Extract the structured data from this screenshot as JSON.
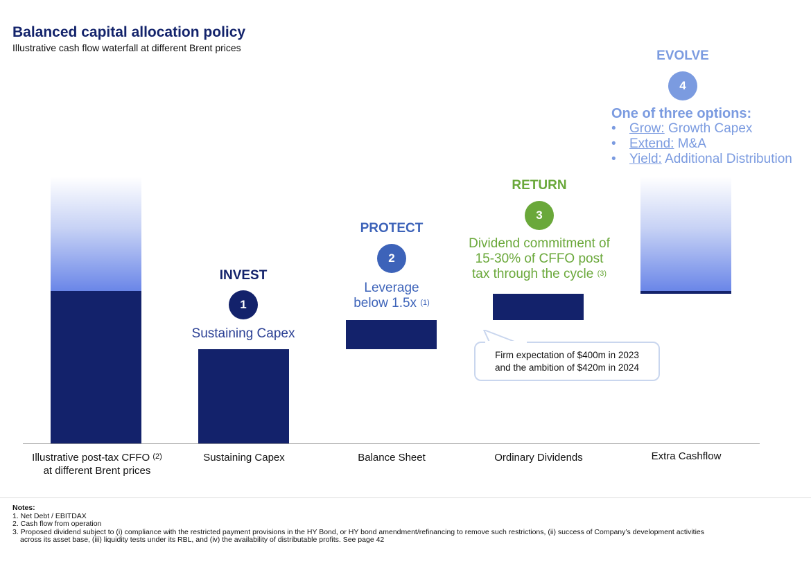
{
  "header": {
    "title": "Balanced capital allocation policy",
    "subtitle": "Illustrative cash flow waterfall at different Brent prices"
  },
  "colors": {
    "navy": "#13226b",
    "blue": "#3d63b9",
    "green": "#6aa83a",
    "light_blue": "#7b9be0"
  },
  "steps": [
    {
      "heading": "INVEST",
      "number": "1",
      "text": "Sustaining Capex"
    },
    {
      "heading": "PROTECT",
      "number": "2",
      "text_line1": "Leverage",
      "text_line2": "below 1.5x",
      "sup": "(1)"
    },
    {
      "heading": "RETURN",
      "number": "3",
      "text_line1": "Dividend commitment of",
      "text_line2": "15-30% of CFFO post",
      "text_line3": "tax through the cycle",
      "sup": "(3)"
    },
    {
      "heading": "EVOLVE",
      "number": "4",
      "options_title": "One of three options:",
      "options": [
        {
          "key": "Grow:",
          "value": "Growth Capex"
        },
        {
          "key": "Extend:",
          "value": "M&A"
        },
        {
          "key": "Yield:",
          "value": "Additional Distribution"
        }
      ]
    }
  ],
  "callout": {
    "line1": "Firm expectation of $400m in 2023",
    "line2": "and the ambition of $420m in 2024"
  },
  "chart_data": {
    "type": "waterfall",
    "categories": [
      "Illustrative post-tax CFFO at different Brent prices",
      "Sustaining Capex",
      "Balance Sheet",
      "Ordinary Dividends",
      "Extra Cashflow"
    ],
    "category_labels": [
      {
        "line1": "Illustrative post-tax CFFO",
        "sup": "(2)",
        "line2": "at different Brent prices"
      },
      {
        "line1": "Sustaining Capex"
      },
      {
        "line1": "Balance Sheet"
      },
      {
        "line1": "Ordinary Dividends"
      },
      {
        "line1": "Extra Cashflow"
      }
    ],
    "note": "Illustrative, relative scale (no values printed)",
    "bars": [
      {
        "base": 0,
        "top": 100,
        "variable_top": 175
      },
      {
        "base": 0,
        "top": 62
      },
      {
        "base": 62,
        "top": 81
      },
      {
        "base": 81,
        "top": 98
      },
      {
        "base": 98,
        "top": 100,
        "variable_top": 175
      }
    ],
    "ylim": [
      0,
      175
    ]
  },
  "notes": {
    "heading": "Notes:",
    "items": [
      "1. Net Debt / EBITDAX",
      "2. Cash flow from operation",
      "3. Proposed dividend subject to (i) compliance with the restricted payment provisions in the HY Bond, or HY bond amendment/refinancing to remove such restrictions, (ii) success of Company’s development activities",
      "across its asset base, (iii) liquidity tests under its RBL, and (iv) the availability of distributable profits. See page 42"
    ]
  }
}
